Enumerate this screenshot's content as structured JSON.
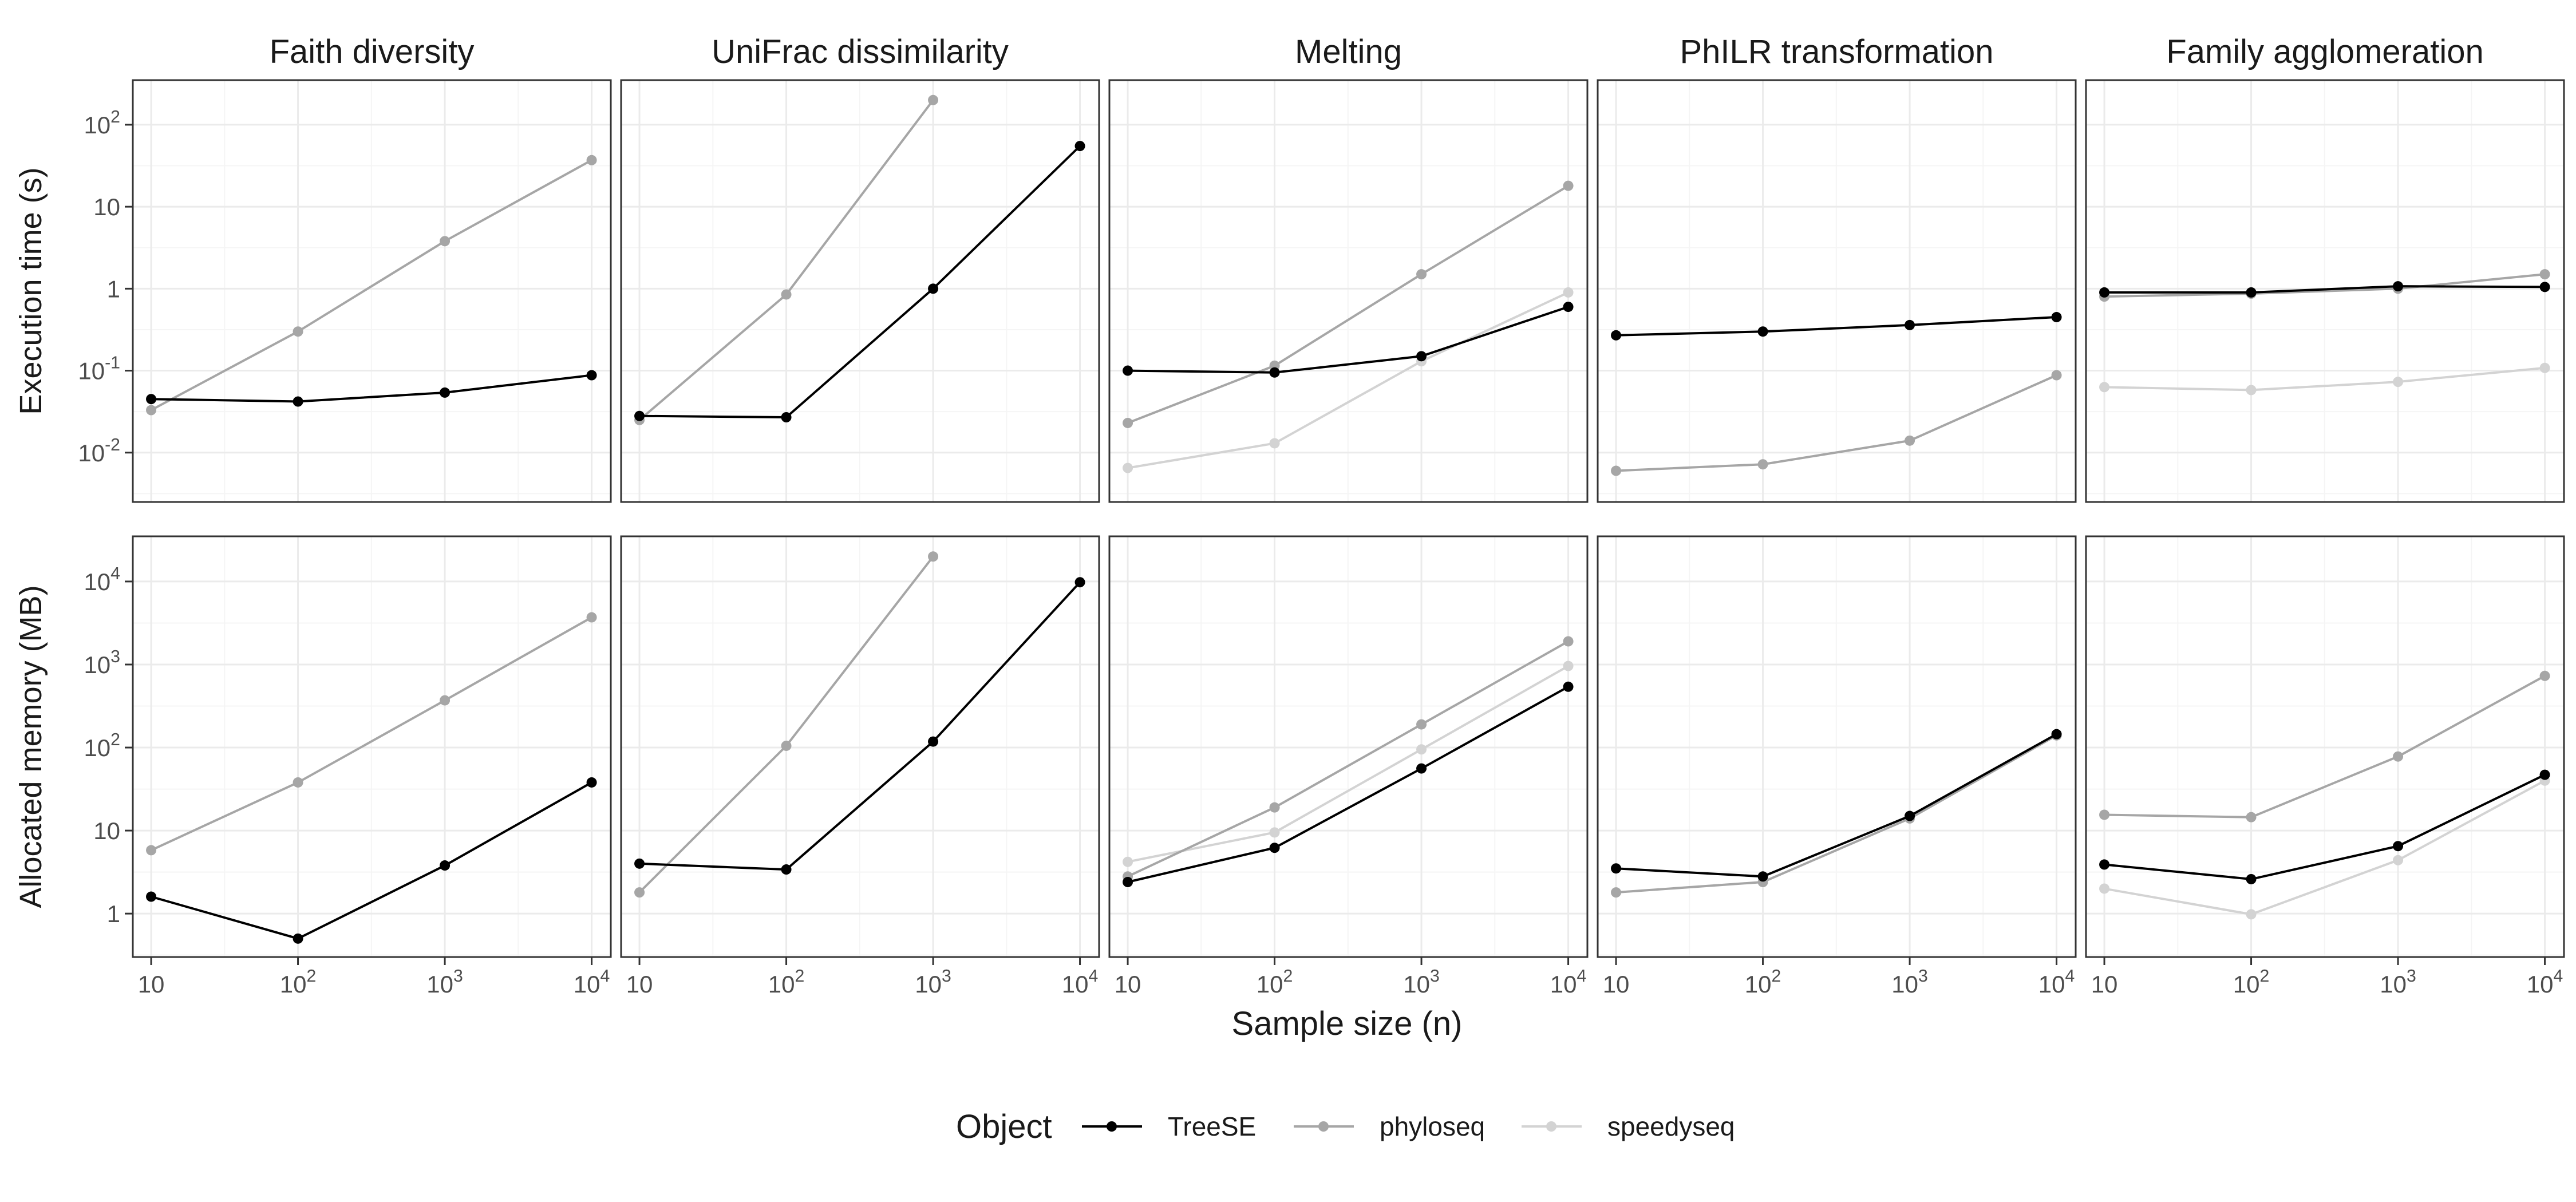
{
  "strip_titles": [
    "Faith diversity",
    "UniFrac dissimilarity",
    "Melting",
    "PhILR transformation",
    "Family agglomeration"
  ],
  "row_labels": [
    "Execution time (s)",
    "Allocated memory (MB)"
  ],
  "x_axis_label": "Sample size (n)",
  "legend": {
    "title": "Object",
    "entries": [
      {
        "name": "TreeSE",
        "color": "#000000"
      },
      {
        "name": "phyloseq",
        "color": "#a6a6a6"
      },
      {
        "name": "speedyseq",
        "color": "#d3d3d3"
      }
    ]
  },
  "colors": {
    "TreeSE": "#000000",
    "phyloseq": "#a6a6a6",
    "speedyseq": "#d3d3d3",
    "grid_major": "#ebebeb",
    "grid_minor": "#f5f5f5",
    "panel_border": "#333333",
    "tick_text": "#4d4d4d"
  },
  "chart_data": {
    "type": "line",
    "x_scale": "log10",
    "y_scale": "log10",
    "x_ticks": [
      {
        "value": 10,
        "base": "10",
        "exp": ""
      },
      {
        "value": 100,
        "base": "10",
        "exp": "2"
      },
      {
        "value": 1000,
        "base": "10",
        "exp": "3"
      },
      {
        "value": 10000,
        "base": "10",
        "exp": "4"
      }
    ],
    "xlim": [
      7.5,
      13500
    ],
    "grid": true,
    "legend_position": "bottom",
    "rows": [
      {
        "ylabel": "Execution time (s)",
        "ylim": [
          0.0025,
          350
        ],
        "y_ticks": [
          {
            "value": 0.01,
            "base": "10",
            "exp": "-2"
          },
          {
            "value": 0.1,
            "base": "10",
            "exp": "-1"
          },
          {
            "value": 1,
            "base": "1",
            "exp": ""
          },
          {
            "value": 10,
            "base": "10",
            "exp": ""
          },
          {
            "value": 100,
            "base": "10",
            "exp": "2"
          }
        ],
        "panels": [
          {
            "title": "Faith diversity",
            "series": [
              {
                "name": "phyloseq",
                "x": [
                  10,
                  100,
                  1000,
                  10000
                ],
                "y": [
                  0.033,
                  0.3,
                  3.8,
                  37
                ]
              },
              {
                "name": "TreeSE",
                "x": [
                  10,
                  100,
                  1000,
                  10000
                ],
                "y": [
                  0.045,
                  0.042,
                  0.054,
                  0.088
                ]
              }
            ]
          },
          {
            "title": "UniFrac dissimilarity",
            "series": [
              {
                "name": "phyloseq",
                "x": [
                  10,
                  100,
                  1000
                ],
                "y": [
                  0.025,
                  0.85,
                  200
                ]
              },
              {
                "name": "TreeSE",
                "x": [
                  10,
                  100,
                  1000,
                  10000
                ],
                "y": [
                  0.028,
                  0.027,
                  1.0,
                  55
                ]
              }
            ]
          },
          {
            "title": "Melting",
            "series": [
              {
                "name": "speedyseq",
                "x": [
                  10,
                  100,
                  1000,
                  10000
                ],
                "y": [
                  0.0065,
                  0.013,
                  0.13,
                  0.9
                ]
              },
              {
                "name": "phyloseq",
                "x": [
                  10,
                  100,
                  1000,
                  10000
                ],
                "y": [
                  0.023,
                  0.115,
                  1.5,
                  18
                ]
              },
              {
                "name": "TreeSE",
                "x": [
                  10,
                  100,
                  1000,
                  10000
                ],
                "y": [
                  0.1,
                  0.095,
                  0.15,
                  0.6
                ]
              }
            ]
          },
          {
            "title": "PhILR transformation",
            "series": [
              {
                "name": "phyloseq",
                "x": [
                  10,
                  100,
                  1000,
                  10000
                ],
                "y": [
                  0.006,
                  0.0072,
                  0.014,
                  0.088
                ]
              },
              {
                "name": "TreeSE",
                "x": [
                  10,
                  100,
                  1000,
                  10000
                ],
                "y": [
                  0.27,
                  0.3,
                  0.36,
                  0.45
                ]
              }
            ]
          },
          {
            "title": "Family agglomeration",
            "series": [
              {
                "name": "speedyseq",
                "x": [
                  10,
                  100,
                  1000,
                  10000
                ],
                "y": [
                  0.063,
                  0.058,
                  0.073,
                  0.108
                ]
              },
              {
                "name": "phyloseq",
                "x": [
                  10,
                  100,
                  1000,
                  10000
                ],
                "y": [
                  0.8,
                  0.87,
                  1.0,
                  1.5
                ]
              },
              {
                "name": "TreeSE",
                "x": [
                  10,
                  100,
                  1000,
                  10000
                ],
                "y": [
                  0.9,
                  0.9,
                  1.07,
                  1.05
                ]
              }
            ]
          }
        ]
      },
      {
        "ylabel": "Allocated memory (MB)",
        "ylim": [
          0.3,
          35000
        ],
        "y_ticks": [
          {
            "value": 1,
            "base": "1",
            "exp": ""
          },
          {
            "value": 10,
            "base": "10",
            "exp": ""
          },
          {
            "value": 100,
            "base": "10",
            "exp": "2"
          },
          {
            "value": 1000,
            "base": "10",
            "exp": "3"
          },
          {
            "value": 10000,
            "base": "10",
            "exp": "4"
          }
        ],
        "panels": [
          {
            "title": "Faith diversity",
            "series": [
              {
                "name": "phyloseq",
                "x": [
                  10,
                  100,
                  1000,
                  10000
                ],
                "y": [
                  5.8,
                  38,
                  370,
                  3700
                ]
              },
              {
                "name": "TreeSE",
                "x": [
                  10,
                  100,
                  1000,
                  10000
                ],
                "y": [
                  1.6,
                  0.5,
                  3.8,
                  38
                ]
              }
            ]
          },
          {
            "title": "UniFrac dissimilarity",
            "series": [
              {
                "name": "phyloseq",
                "x": [
                  10,
                  100,
                  1000
                ],
                "y": [
                  1.8,
                  105,
                  20000
                ]
              },
              {
                "name": "TreeSE",
                "x": [
                  10,
                  100,
                  1000,
                  10000
                ],
                "y": [
                  4.0,
                  3.4,
                  118,
                  9800
                ]
              }
            ]
          },
          {
            "title": "Melting",
            "series": [
              {
                "name": "speedyseq",
                "x": [
                  10,
                  100,
                  1000,
                  10000
                ],
                "y": [
                  4.2,
                  9.5,
                  95,
                  960
                ]
              },
              {
                "name": "phyloseq",
                "x": [
                  10,
                  100,
                  1000,
                  10000
                ],
                "y": [
                  2.8,
                  19,
                  190,
                  1900
                ]
              },
              {
                "name": "TreeSE",
                "x": [
                  10,
                  100,
                  1000,
                  10000
                ],
                "y": [
                  2.4,
                  6.2,
                  56,
                  540
                ]
              }
            ]
          },
          {
            "title": "PhILR transformation",
            "series": [
              {
                "name": "phyloseq",
                "x": [
                  10,
                  100,
                  1000,
                  10000
                ],
                "y": [
                  1.8,
                  2.4,
                  14,
                  140
                ]
              },
              {
                "name": "TreeSE",
                "x": [
                  10,
                  100,
                  1000,
                  10000
                ],
                "y": [
                  3.5,
                  2.8,
                  15,
                  145
                ]
              }
            ]
          },
          {
            "title": "Family agglomeration",
            "series": [
              {
                "name": "speedyseq",
                "x": [
                  10,
                  100,
                  1000,
                  10000
                ],
                "y": [
                  2.0,
                  0.98,
                  4.4,
                  40
                ]
              },
              {
                "name": "phyloseq",
                "x": [
                  10,
                  100,
                  1000,
                  10000
                ],
                "y": [
                  15.5,
                  14.5,
                  78,
                  730
                ]
              },
              {
                "name": "TreeSE",
                "x": [
                  10,
                  100,
                  1000,
                  10000
                ],
                "y": [
                  3.9,
                  2.6,
                  6.5,
                  47
                ]
              }
            ]
          }
        ]
      }
    ]
  }
}
